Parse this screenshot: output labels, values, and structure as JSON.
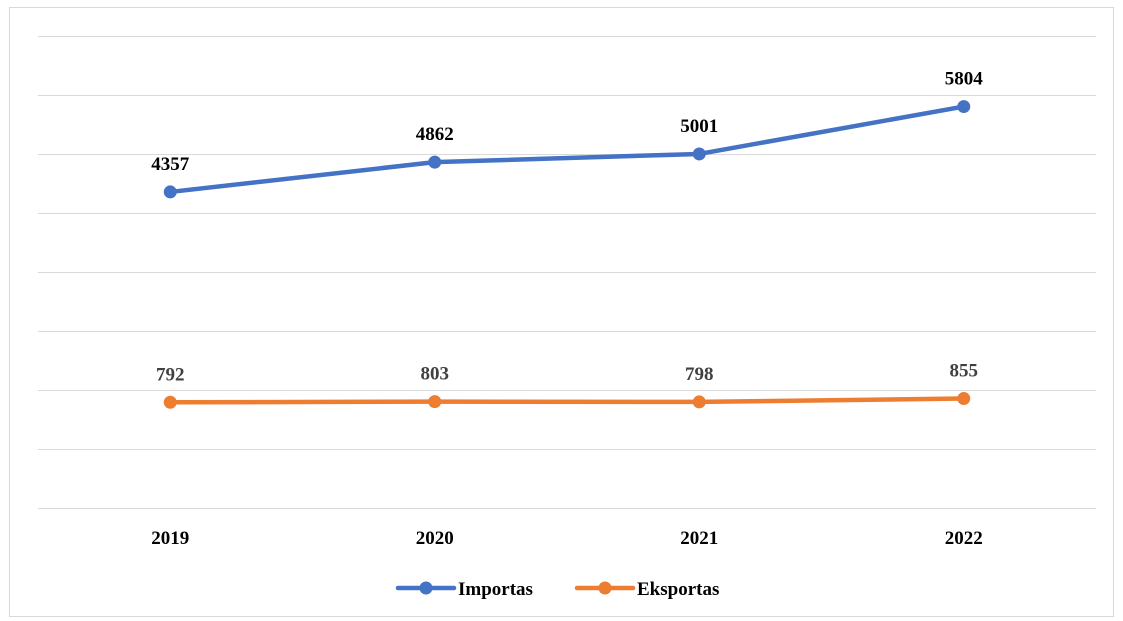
{
  "chart_data": {
    "type": "line",
    "categories": [
      "2019",
      "2020",
      "2021",
      "2022"
    ],
    "series": [
      {
        "name": "Importas",
        "values": [
          4357,
          4862,
          5001,
          5804
        ],
        "color": "#4472c4",
        "label_color": "#000000"
      },
      {
        "name": "Eksportas",
        "values": [
          792,
          803,
          798,
          855
        ],
        "color": "#ed7d31",
        "label_color": "#404040"
      }
    ],
    "ylim": [
      -1000,
      7000
    ],
    "y_gridline_step": 1000,
    "grid": true,
    "y_axis_labels_visible": false,
    "legend_position": "bottom",
    "data_labels": true
  }
}
